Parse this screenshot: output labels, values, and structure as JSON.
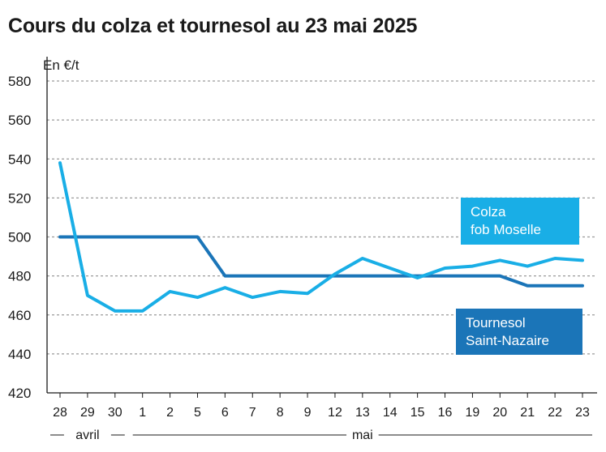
{
  "chart_data": {
    "type": "line",
    "title": "Cours du colza et tournesol au 23 mai 2025",
    "ylabel": "En €/t",
    "ylim": [
      420,
      580
    ],
    "yticks": [
      420,
      440,
      460,
      480,
      500,
      520,
      540,
      560,
      580
    ],
    "grid": true,
    "categories": [
      "28",
      "29",
      "30",
      "1",
      "2",
      "5",
      "6",
      "7",
      "8",
      "9",
      "12",
      "13",
      "14",
      "15",
      "16",
      "19",
      "20",
      "21",
      "22",
      "23"
    ],
    "month_labels": [
      {
        "label": "avril",
        "from": 0,
        "to": 2
      },
      {
        "label": "mai",
        "from": 3,
        "to": 19
      }
    ],
    "series": [
      {
        "name": "Colza fob Moselle",
        "legend_lines": [
          "Colza",
          "fob Moselle"
        ],
        "color": "#19aee6",
        "values": [
          538,
          470,
          462,
          462,
          472,
          469,
          474,
          469,
          472,
          471,
          481,
          489,
          484,
          479,
          484,
          485,
          488,
          485,
          489,
          488
        ]
      },
      {
        "name": "Tournesol Saint-Nazaire",
        "legend_lines": [
          "Tournesol",
          "Saint-Nazaire"
        ],
        "color": "#1b75b8",
        "values": [
          500,
          500,
          500,
          500,
          500,
          500,
          480,
          480,
          480,
          480,
          480,
          480,
          480,
          480,
          480,
          480,
          480,
          475,
          475,
          475
        ]
      }
    ]
  }
}
